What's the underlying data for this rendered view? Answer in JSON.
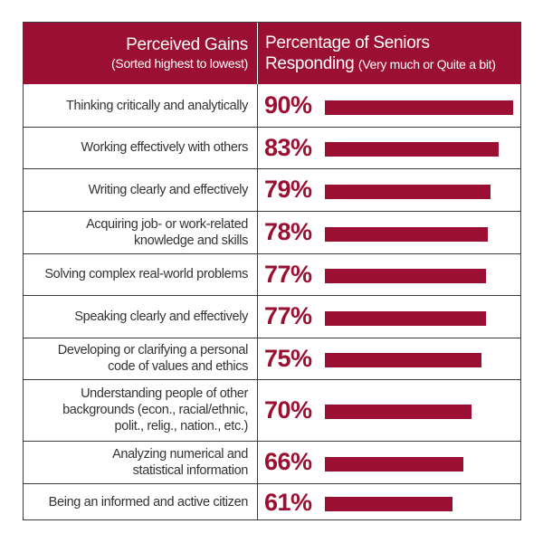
{
  "colors": {
    "accent": "#9b1032",
    "text": "#333333",
    "border": "#3a3a3a"
  },
  "header": {
    "left_title": "Perceived Gains",
    "left_subtitle": "(Sorted highest to lowest)",
    "right_title_line1": "Percentage of Seniors",
    "right_title_line2": "Responding",
    "right_subtitle": "(Very much or Quite a bit)"
  },
  "chart_data": {
    "type": "bar",
    "orientation": "horizontal",
    "categories": [
      "Thinking critically and analytically",
      "Working effectively with others",
      "Writing clearly and effectively",
      "Acquiring job- or work-related\nknowledge and skills",
      "Solving complex real-world problems",
      "Speaking clearly and effectively",
      "Developing or clarifying a personal\ncode of values and ethics",
      "Understanding people of other\nbackgrounds (econ., racial/ethnic,\npolit., relig., nation., etc.)",
      "Analyzing numerical and\nstatistical information",
      "Being an informed and active citizen"
    ],
    "values": [
      90,
      83,
      79,
      78,
      77,
      77,
      75,
      70,
      66,
      61
    ],
    "value_labels": [
      "90%",
      "83%",
      "79%",
      "78%",
      "77%",
      "77%",
      "75%",
      "70%",
      "66%",
      "61%"
    ]
  }
}
